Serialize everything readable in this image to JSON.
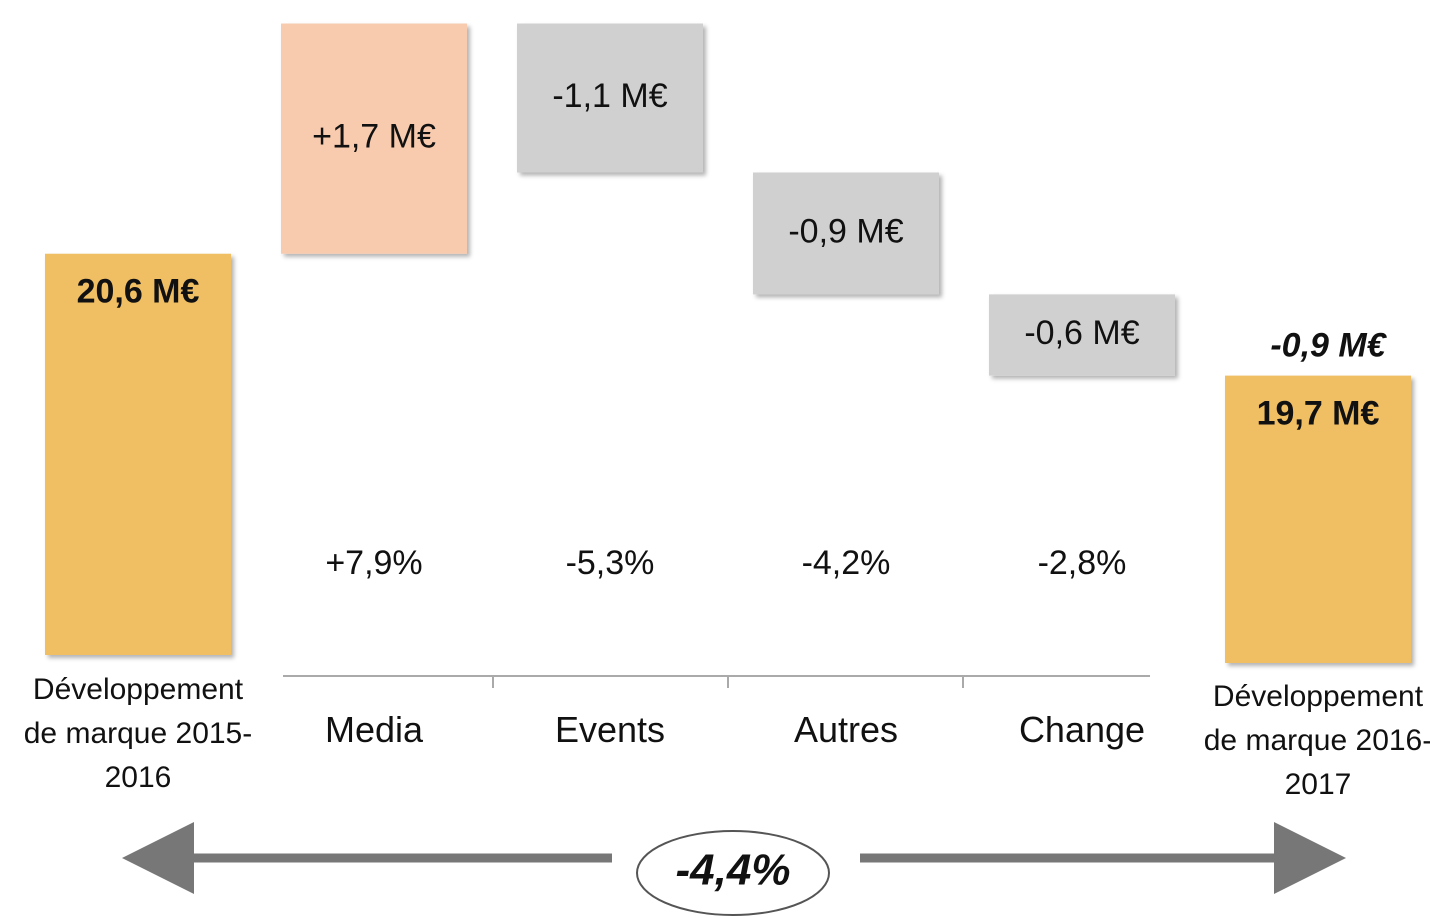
{
  "chart_data": {
    "type": "waterfall",
    "categories": [
      "Développement de marque 2015-2016",
      "Media",
      "Events",
      "Autres",
      "Change",
      "Développement de marque 2016-2017"
    ],
    "values": [
      20.6,
      1.7,
      -1.1,
      -0.9,
      -0.6,
      19.7
    ],
    "value_labels": [
      "20,6 M€",
      "+1,7 M€",
      "-1,1 M€",
      "-0,9 M€",
      "-0,6 M€",
      "19,7 M€"
    ],
    "measure": [
      "absolute",
      "relative",
      "relative",
      "relative",
      "relative",
      "absolute"
    ],
    "change_labels": [
      null,
      "+7,9%",
      "-5,3%",
      "-4,2%",
      "-2,8%",
      null
    ],
    "colors": {
      "total": "#f0be64",
      "increase": "#f8caae",
      "decrease": "#d0d0d0"
    },
    "ylim": [
      17.6,
      22.4
    ],
    "end_annotation": "-0,9 M€",
    "total_change": "-4,4%"
  }
}
